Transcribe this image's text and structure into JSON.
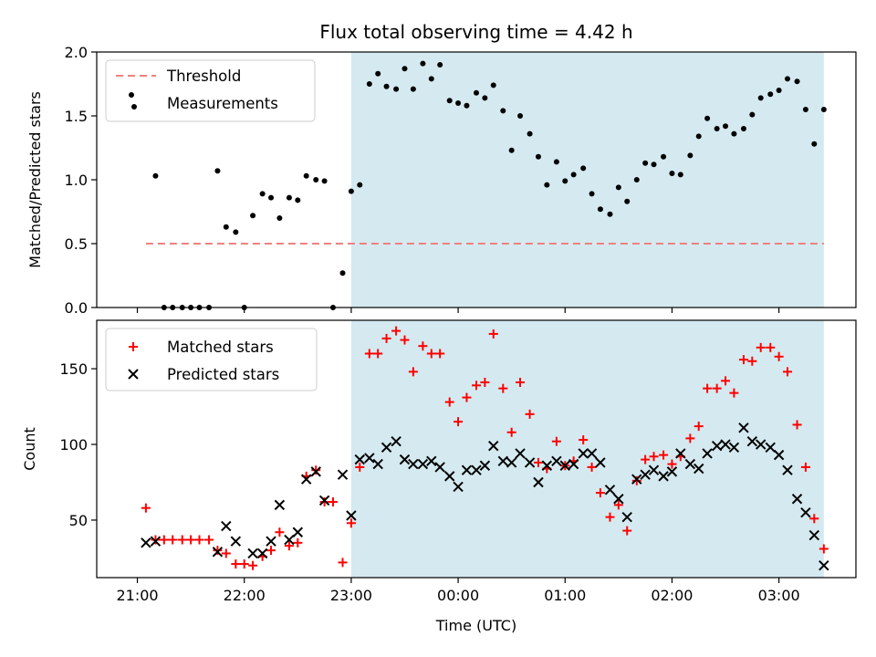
{
  "chart_data": [
    {
      "type": "scatter",
      "title": "Flux total observing time = 4.42 h",
      "xlabel": "",
      "ylabel": "Matched/Predicted stars",
      "ylim": [
        0,
        2.0
      ],
      "yticks": [
        "0.0",
        "0.5",
        "1.0",
        "1.5",
        "2.0"
      ],
      "xlim_hours": [
        20.62,
        27.72
      ],
      "xticks": [
        "21:00",
        "22:00",
        "23:00",
        "00:00",
        "01:00",
        "02:00",
        "03:00"
      ],
      "xtick_hours": [
        21,
        22,
        23,
        24,
        25,
        26,
        27
      ],
      "shaded_span_hours": [
        23.0,
        27.42
      ],
      "shade_color": "#d4eaf0",
      "legend_position": "upper left",
      "threshold": {
        "name": "Threshold",
        "y": 0.5,
        "x_range_hours": [
          21.08,
          27.42
        ],
        "color": "#f08080",
        "style": "dashed"
      },
      "series": [
        {
          "name": "Measurements",
          "color": "#000000",
          "marker": "dot",
          "points": [
            [
              21.17,
              1.03
            ],
            [
              21.25,
              0.0
            ],
            [
              21.33,
              0.0
            ],
            [
              21.42,
              0.0
            ],
            [
              21.5,
              0.0
            ],
            [
              21.58,
              0.0
            ],
            [
              21.67,
              0.0
            ],
            [
              21.75,
              1.07
            ],
            [
              21.83,
              0.63
            ],
            [
              21.92,
              0.59
            ],
            [
              22.0,
              0.0
            ],
            [
              22.08,
              0.72
            ],
            [
              22.17,
              0.89
            ],
            [
              22.25,
              0.86
            ],
            [
              22.33,
              0.7
            ],
            [
              22.42,
              0.86
            ],
            [
              22.5,
              0.84
            ],
            [
              22.58,
              1.03
            ],
            [
              22.67,
              1.0
            ],
            [
              22.75,
              0.99
            ],
            [
              22.83,
              0.0
            ],
            [
              22.92,
              0.27
            ],
            [
              23.0,
              0.91
            ],
            [
              23.08,
              0.96
            ],
            [
              23.17,
              1.75
            ],
            [
              23.25,
              1.83
            ],
            [
              23.33,
              1.73
            ],
            [
              23.42,
              1.71
            ],
            [
              23.5,
              1.87
            ],
            [
              23.58,
              1.71
            ],
            [
              23.67,
              1.91
            ],
            [
              23.75,
              1.79
            ],
            [
              23.83,
              1.9
            ],
            [
              23.92,
              1.62
            ],
            [
              24.0,
              1.6
            ],
            [
              24.08,
              1.58
            ],
            [
              24.17,
              1.68
            ],
            [
              24.25,
              1.64
            ],
            [
              24.33,
              1.74
            ],
            [
              24.42,
              1.54
            ],
            [
              24.5,
              1.23
            ],
            [
              24.58,
              1.5
            ],
            [
              24.67,
              1.36
            ],
            [
              24.75,
              1.18
            ],
            [
              24.83,
              0.96
            ],
            [
              24.92,
              1.14
            ],
            [
              25.0,
              0.99
            ],
            [
              25.08,
              1.04
            ],
            [
              25.17,
              1.09
            ],
            [
              25.25,
              0.89
            ],
            [
              25.33,
              0.77
            ],
            [
              25.42,
              0.73
            ],
            [
              25.5,
              0.94
            ],
            [
              25.58,
              0.83
            ],
            [
              25.67,
              1.0
            ],
            [
              25.75,
              1.13
            ],
            [
              25.83,
              1.12
            ],
            [
              25.92,
              1.18
            ],
            [
              26.0,
              1.05
            ],
            [
              26.08,
              1.04
            ],
            [
              26.17,
              1.19
            ],
            [
              26.25,
              1.34
            ],
            [
              26.33,
              1.48
            ],
            [
              26.42,
              1.4
            ],
            [
              26.5,
              1.42
            ],
            [
              26.58,
              1.36
            ],
            [
              26.67,
              1.4
            ],
            [
              26.75,
              1.51
            ],
            [
              26.83,
              1.64
            ],
            [
              26.92,
              1.67
            ],
            [
              27.0,
              1.7
            ],
            [
              27.08,
              1.79
            ],
            [
              27.17,
              1.77
            ],
            [
              27.25,
              1.55
            ],
            [
              27.33,
              1.28
            ],
            [
              27.42,
              1.55
            ]
          ]
        }
      ]
    },
    {
      "type": "scatter",
      "title": "",
      "xlabel": "Time (UTC)",
      "ylabel": "Count",
      "ylim": [
        12,
        182
      ],
      "yticks": [
        "50",
        "100",
        "150"
      ],
      "ytick_values": [
        50,
        100,
        150
      ],
      "xlim_hours": [
        20.62,
        27.72
      ],
      "xticks": [
        "21:00",
        "22:00",
        "23:00",
        "00:00",
        "01:00",
        "02:00",
        "03:00"
      ],
      "xtick_hours": [
        21,
        22,
        23,
        24,
        25,
        26,
        27
      ],
      "shaded_span_hours": [
        23.0,
        27.42
      ],
      "shade_color": "#d4eaf0",
      "legend_position": "upper left",
      "series": [
        {
          "name": "Matched stars",
          "color": "#ff0000",
          "marker": "plus",
          "points": [
            [
              21.08,
              58
            ],
            [
              21.17,
              37
            ],
            [
              21.25,
              37
            ],
            [
              21.33,
              37
            ],
            [
              21.42,
              37
            ],
            [
              21.5,
              37
            ],
            [
              21.58,
              37
            ],
            [
              21.67,
              37
            ],
            [
              21.75,
              30
            ],
            [
              21.83,
              28
            ],
            [
              21.92,
              21
            ],
            [
              22.0,
              21
            ],
            [
              22.08,
              20
            ],
            [
              22.17,
              26
            ],
            [
              22.25,
              30
            ],
            [
              22.33,
              42
            ],
            [
              22.42,
              33
            ],
            [
              22.5,
              35
            ],
            [
              22.58,
              79
            ],
            [
              22.67,
              83
            ],
            [
              22.75,
              62
            ],
            [
              22.83,
              62
            ],
            [
              22.92,
              22
            ],
            [
              23.0,
              48
            ],
            [
              23.08,
              85
            ],
            [
              23.17,
              160
            ],
            [
              23.25,
              160
            ],
            [
              23.33,
              170
            ],
            [
              23.42,
              175
            ],
            [
              23.5,
              169
            ],
            [
              23.58,
              148
            ],
            [
              23.67,
              165
            ],
            [
              23.75,
              160
            ],
            [
              23.83,
              160
            ],
            [
              23.92,
              128
            ],
            [
              24.0,
              115
            ],
            [
              24.08,
              131
            ],
            [
              24.17,
              139
            ],
            [
              24.25,
              141
            ],
            [
              24.33,
              173
            ],
            [
              24.42,
              137
            ],
            [
              24.5,
              108
            ],
            [
              24.58,
              141
            ],
            [
              24.67,
              120
            ],
            [
              24.75,
              88
            ],
            [
              24.83,
              84
            ],
            [
              24.92,
              102
            ],
            [
              25.0,
              86
            ],
            [
              25.08,
              89
            ],
            [
              25.17,
              103
            ],
            [
              25.25,
              85
            ],
            [
              25.33,
              68
            ],
            [
              25.42,
              52
            ],
            [
              25.5,
              60
            ],
            [
              25.58,
              43
            ],
            [
              25.67,
              76
            ],
            [
              25.75,
              90
            ],
            [
              25.83,
              92
            ],
            [
              25.92,
              93
            ],
            [
              26.0,
              87
            ],
            [
              26.08,
              92
            ],
            [
              26.17,
              104
            ],
            [
              26.25,
              112
            ],
            [
              26.33,
              137
            ],
            [
              26.42,
              137
            ],
            [
              26.5,
              142
            ],
            [
              26.58,
              134
            ],
            [
              26.67,
              156
            ],
            [
              26.75,
              155
            ],
            [
              26.83,
              164
            ],
            [
              26.92,
              164
            ],
            [
              27.0,
              158
            ],
            [
              27.08,
              148
            ],
            [
              27.17,
              113
            ],
            [
              27.25,
              85
            ],
            [
              27.33,
              51
            ],
            [
              27.42,
              31
            ]
          ]
        },
        {
          "name": "Predicted stars",
          "color": "#000000",
          "marker": "cross",
          "points": [
            [
              21.08,
              35
            ],
            [
              21.17,
              36
            ],
            [
              21.75,
              29
            ],
            [
              21.83,
              46
            ],
            [
              21.92,
              36
            ],
            [
              22.08,
              28
            ],
            [
              22.17,
              28
            ],
            [
              22.25,
              36
            ],
            [
              22.33,
              60
            ],
            [
              22.42,
              37
            ],
            [
              22.5,
              42
            ],
            [
              22.58,
              77
            ],
            [
              22.67,
              82
            ],
            [
              22.75,
              63
            ],
            [
              22.92,
              80
            ],
            [
              23.0,
              53
            ],
            [
              23.08,
              90
            ],
            [
              23.17,
              91
            ],
            [
              23.25,
              87
            ],
            [
              23.33,
              98
            ],
            [
              23.42,
              102
            ],
            [
              23.5,
              90
            ],
            [
              23.58,
              87
            ],
            [
              23.67,
              87
            ],
            [
              23.75,
              89
            ],
            [
              23.83,
              85
            ],
            [
              23.92,
              79
            ],
            [
              24.0,
              72
            ],
            [
              24.08,
              83
            ],
            [
              24.17,
              83
            ],
            [
              24.25,
              86
            ],
            [
              24.33,
              99
            ],
            [
              24.42,
              89
            ],
            [
              24.5,
              88
            ],
            [
              24.58,
              94
            ],
            [
              24.67,
              88
            ],
            [
              24.75,
              75
            ],
            [
              24.83,
              86
            ],
            [
              24.92,
              89
            ],
            [
              25.0,
              86
            ],
            [
              25.08,
              87
            ],
            [
              25.17,
              94
            ],
            [
              25.25,
              94
            ],
            [
              25.33,
              88
            ],
            [
              25.42,
              70
            ],
            [
              25.5,
              64
            ],
            [
              25.58,
              52
            ],
            [
              25.67,
              77
            ],
            [
              25.75,
              80
            ],
            [
              25.83,
              83
            ],
            [
              25.92,
              79
            ],
            [
              26.0,
              82
            ],
            [
              26.08,
              94
            ],
            [
              26.17,
              87
            ],
            [
              26.25,
              84
            ],
            [
              26.33,
              94
            ],
            [
              26.42,
              99
            ],
            [
              26.5,
              100
            ],
            [
              26.58,
              98
            ],
            [
              26.67,
              111
            ],
            [
              26.75,
              102
            ],
            [
              26.83,
              100
            ],
            [
              26.92,
              98
            ],
            [
              27.0,
              93
            ],
            [
              27.08,
              83
            ],
            [
              27.17,
              64
            ],
            [
              27.25,
              55
            ],
            [
              27.33,
              40
            ],
            [
              27.42,
              20
            ]
          ]
        }
      ]
    }
  ]
}
